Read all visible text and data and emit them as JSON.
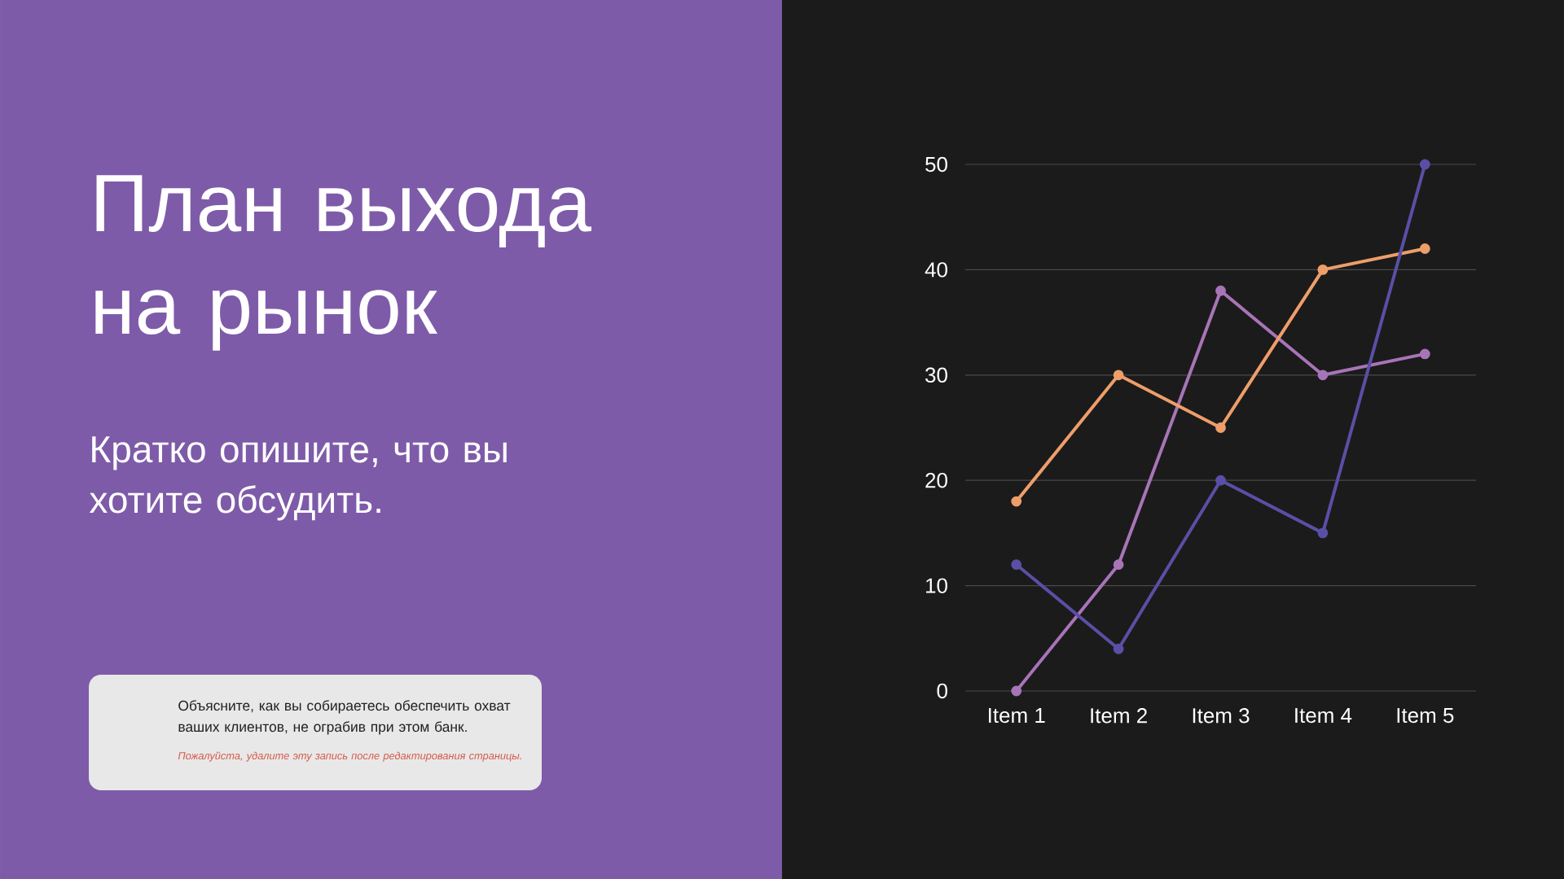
{
  "chart_data": {
    "type": "line",
    "title": "План выхода на рынок",
    "subtitle": "Кратко опишите, что вы хотите обсудить.",
    "annotations": [
      "Объясните, как вы собираетесь обеспечить охват ваших клиентов, не ограбив при этом банк.",
      "Пожалуйста, удалите эту запись после редактирования страницы."
    ],
    "categories": [
      "Item 1",
      "Item 2",
      "Item 3",
      "Item 4",
      "Item 5"
    ],
    "series": [
      {
        "color": "#a874b8",
        "values": [
          0,
          12,
          38,
          30,
          32
        ]
      },
      {
        "color": "#ee9e6a",
        "values": [
          18,
          30,
          25,
          40,
          42
        ]
      },
      {
        "color": "#5a4fa6",
        "values": [
          12,
          4,
          20,
          15,
          50
        ]
      }
    ],
    "ylim": [
      0,
      50
    ],
    "yticks": [
      0,
      10,
      20,
      30,
      40,
      50
    ],
    "grid": "y",
    "marker": "circle",
    "line_style": "solid"
  }
}
